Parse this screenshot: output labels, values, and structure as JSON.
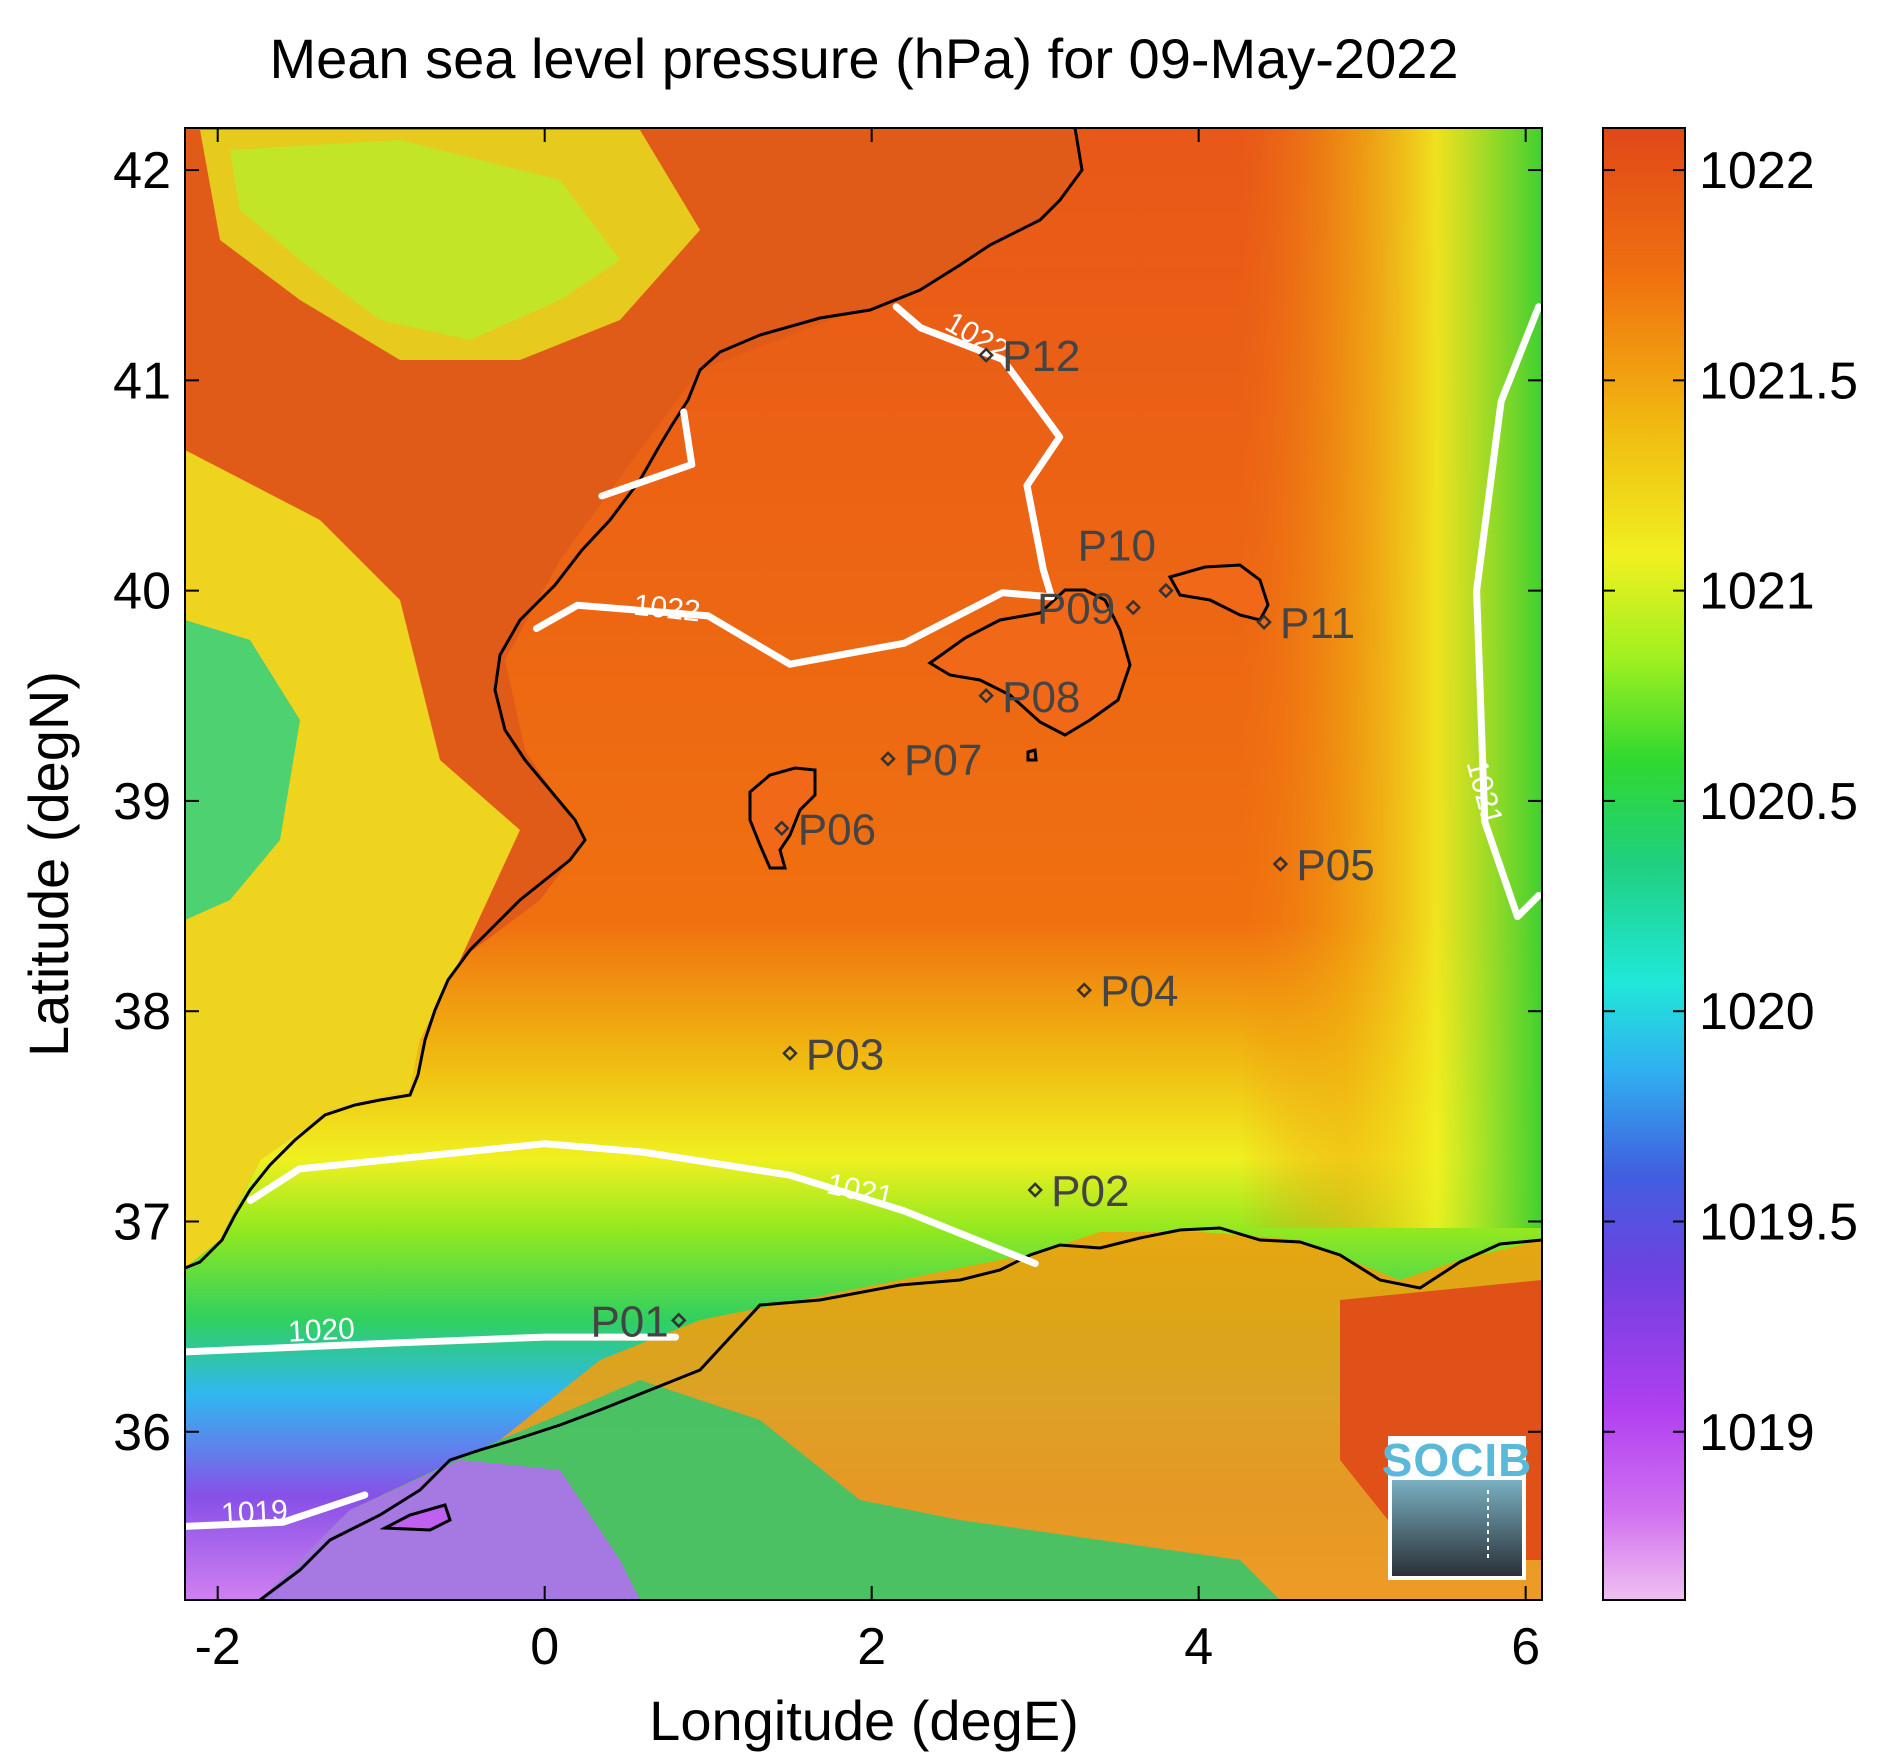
{
  "title": "Mean sea level pressure (hPa) for 09-May-2022",
  "x_axis": {
    "label": "Longitude (degE)",
    "range": [
      -2.2,
      6.1
    ],
    "ticks": [
      -2,
      0,
      2,
      4,
      6
    ],
    "tick_labels": [
      "-2",
      "0",
      "2",
      "4",
      "6"
    ]
  },
  "y_axis": {
    "label": "Latitude (degN)",
    "range": [
      35.2,
      42.2
    ],
    "ticks": [
      36,
      37,
      38,
      39,
      40,
      41,
      42
    ],
    "tick_labels": [
      "36",
      "37",
      "38",
      "39",
      "40",
      "41",
      "42"
    ]
  },
  "colorbar": {
    "range": [
      1018.6,
      1022.1
    ],
    "ticks": [
      1019,
      1019.5,
      1020,
      1020.5,
      1021,
      1021.5,
      1022
    ],
    "tick_labels": [
      "1019",
      "1019.5",
      "1020",
      "1020.5",
      "1021",
      "1021.5",
      "1022"
    ],
    "colors": [
      "#f0b8f0",
      "#c050f0",
      "#8040e0",
      "#4060e0",
      "#30c0f0",
      "#20e8d0",
      "#30d060",
      "#60e020",
      "#c0f020",
      "#f0f020",
      "#f0c010",
      "#f08010",
      "#f06010",
      "#e04818"
    ]
  },
  "points": [
    {
      "label": "P01",
      "lon": 0.82,
      "lat": 36.53
    },
    {
      "label": "P02",
      "lon": 3.0,
      "lat": 37.15
    },
    {
      "label": "P03",
      "lon": 1.5,
      "lat": 37.8
    },
    {
      "label": "P04",
      "lon": 3.3,
      "lat": 38.1
    },
    {
      "label": "P05",
      "lon": 4.5,
      "lat": 38.7
    },
    {
      "label": "P06",
      "lon": 1.45,
      "lat": 38.87
    },
    {
      "label": "P07",
      "lon": 2.1,
      "lat": 39.2
    },
    {
      "label": "P08",
      "lon": 2.7,
      "lat": 39.5
    },
    {
      "label": "P09",
      "lon": 3.6,
      "lat": 39.92
    },
    {
      "label": "P10",
      "lon": 3.8,
      "lat": 40.0
    },
    {
      "label": "P11",
      "lon": 4.4,
      "lat": 39.85
    },
    {
      "label": "P12",
      "lon": 2.7,
      "lat": 41.12
    }
  ],
  "contour_labels": [
    "1019",
    "1020",
    "1021",
    "1021",
    "1022",
    "1022"
  ],
  "logo_text": "SOCIB",
  "chart_data": {
    "type": "heatmap",
    "title": "Mean sea level pressure (hPa) for 09-May-2022",
    "xlabel": "Longitude (degE)",
    "ylabel": "Latitude (degN)",
    "xlim": [
      -2.2,
      6.1
    ],
    "ylim": [
      35.2,
      42.2
    ],
    "value_range": [
      1018.6,
      1022.1
    ],
    "colorbar": "vertical, right",
    "contours": [
      {
        "level": 1019,
        "path": [
          [
            -2.2,
            35.55
          ],
          [
            -1.6,
            35.57
          ],
          [
            -1.1,
            35.7
          ]
        ]
      },
      {
        "level": 1020,
        "path": [
          [
            -2.2,
            36.38
          ],
          [
            -1.0,
            36.42
          ],
          [
            0.0,
            36.45
          ],
          [
            0.8,
            36.45
          ]
        ]
      },
      {
        "level": 1021,
        "path": [
          [
            -1.8,
            37.1
          ],
          [
            -1.5,
            37.25
          ],
          [
            -0.5,
            37.33
          ],
          [
            0.0,
            37.37
          ],
          [
            0.6,
            37.33
          ],
          [
            1.5,
            37.22
          ],
          [
            2.2,
            37.05
          ],
          [
            3.0,
            36.8
          ]
        ]
      },
      {
        "level": 1021,
        "path": [
          [
            6.08,
            41.35
          ],
          [
            5.85,
            40.9
          ],
          [
            5.7,
            40.0
          ],
          [
            5.75,
            38.9
          ],
          [
            5.95,
            38.45
          ],
          [
            6.08,
            38.55
          ]
        ]
      },
      {
        "level": 1022,
        "path": [
          [
            -0.05,
            39.82
          ],
          [
            0.2,
            39.93
          ],
          [
            1.0,
            39.88
          ],
          [
            1.5,
            39.65
          ],
          [
            2.2,
            39.75
          ],
          [
            2.8,
            39.99
          ],
          [
            3.1,
            39.97
          ],
          [
            3.05,
            40.1
          ],
          [
            2.95,
            40.5
          ],
          [
            3.15,
            40.73
          ],
          [
            2.8,
            41.1
          ],
          [
            2.3,
            41.25
          ],
          [
            2.15,
            41.35
          ]
        ]
      },
      {
        "level": 1022,
        "path": [
          [
            0.35,
            40.45
          ],
          [
            0.9,
            40.6
          ],
          [
            0.85,
            40.85
          ]
        ]
      }
    ],
    "points": [
      {
        "label": "P01",
        "lon": 0.82,
        "lat": 36.53
      },
      {
        "label": "P02",
        "lon": 3.0,
        "lat": 37.15
      },
      {
        "label": "P03",
        "lon": 1.5,
        "lat": 37.8
      },
      {
        "label": "P04",
        "lon": 3.3,
        "lat": 38.1
      },
      {
        "label": "P05",
        "lon": 4.5,
        "lat": 38.7
      },
      {
        "label": "P06",
        "lon": 1.45,
        "lat": 38.87
      },
      {
        "label": "P07",
        "lon": 2.1,
        "lat": 39.2
      },
      {
        "label": "P08",
        "lon": 2.7,
        "lat": 39.5
      },
      {
        "label": "P09",
        "lon": 3.6,
        "lat": 39.92
      },
      {
        "label": "P10",
        "lon": 3.8,
        "lat": 40.0
      },
      {
        "label": "P11",
        "lon": 4.4,
        "lat": 39.85
      },
      {
        "label": "P12",
        "lon": 2.7,
        "lat": 41.12
      }
    ]
  }
}
